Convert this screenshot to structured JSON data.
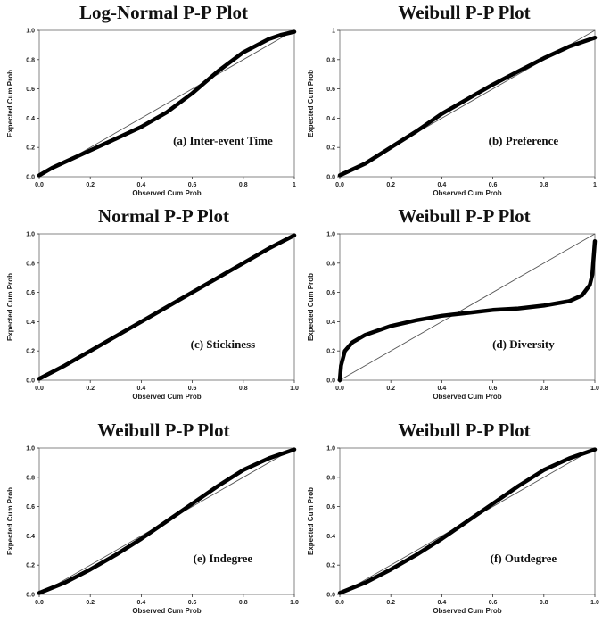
{
  "chart_data": [
    {
      "type": "line",
      "title": "Log-Normal P-P Plot",
      "caption": "(a) Inter-event Time",
      "xlabel": "Observed Cum Prob",
      "ylabel": "Expected Cum Prob",
      "xlim": [
        0,
        1
      ],
      "ylim": [
        0,
        1
      ],
      "x_ticks": [
        "0.0",
        "0.2",
        "0.4",
        "0.6",
        "0.8",
        "1"
      ],
      "y_ticks": [
        "0.0",
        "0.2",
        "0.4",
        "0.6",
        "0.8",
        "1.0"
      ],
      "reference_line": [
        [
          0,
          0
        ],
        [
          1,
          1
        ]
      ],
      "series": [
        {
          "x": [
            0,
            0.05,
            0.1,
            0.2,
            0.3,
            0.4,
            0.5,
            0.6,
            0.7,
            0.8,
            0.9,
            0.95,
            1.0
          ],
          "y": [
            0.01,
            0.06,
            0.1,
            0.18,
            0.26,
            0.34,
            0.44,
            0.57,
            0.72,
            0.85,
            0.94,
            0.97,
            0.99
          ]
        }
      ]
    },
    {
      "type": "line",
      "title": "Weibull P-P Plot",
      "caption": "(b) Preference",
      "xlabel": "Observed Cum Prob",
      "ylabel": "Expected Cum Prob",
      "xlim": [
        0,
        1
      ],
      "ylim": [
        0,
        1
      ],
      "x_ticks": [
        "0.0",
        "0.2",
        "0.4",
        "0.6",
        "0.8",
        "1"
      ],
      "y_ticks": [
        "0.0",
        "0.2",
        "0.4",
        "0.6",
        "0.8",
        "1"
      ],
      "reference_line": [
        [
          0,
          0
        ],
        [
          1,
          1
        ]
      ],
      "series": [
        {
          "x": [
            0,
            0.1,
            0.2,
            0.3,
            0.4,
            0.5,
            0.6,
            0.7,
            0.8,
            0.9,
            1.0
          ],
          "y": [
            0.01,
            0.09,
            0.2,
            0.31,
            0.43,
            0.53,
            0.63,
            0.72,
            0.81,
            0.89,
            0.95
          ]
        }
      ]
    },
    {
      "type": "line",
      "title": "Normal P-P Plot",
      "caption": "(c) Stickiness",
      "xlabel": "Observed Cum Prob",
      "ylabel": "Expected Cum Prob",
      "xlim": [
        0,
        1
      ],
      "ylim": [
        0,
        1
      ],
      "x_ticks": [
        "0.0",
        "0.2",
        "0.4",
        "0.6",
        "0.8",
        "1.0"
      ],
      "y_ticks": [
        "0.0",
        "0.2",
        "0.4",
        "0.6",
        "0.8",
        "1.0"
      ],
      "reference_line": [
        [
          0,
          0
        ],
        [
          1,
          1
        ]
      ],
      "series": [
        {
          "x": [
            0,
            0.1,
            0.2,
            0.3,
            0.4,
            0.5,
            0.6,
            0.7,
            0.8,
            0.9,
            1.0
          ],
          "y": [
            0.01,
            0.1,
            0.2,
            0.3,
            0.4,
            0.5,
            0.6,
            0.7,
            0.8,
            0.9,
            0.99
          ]
        }
      ]
    },
    {
      "type": "line",
      "title": "Weibull P-P Plot",
      "caption": "(d) Diversity",
      "xlabel": "Observed Cum Prob",
      "ylabel": "Expected Cum Prob",
      "xlim": [
        0,
        1
      ],
      "ylim": [
        0,
        1
      ],
      "x_ticks": [
        "0.0",
        "0.2",
        "0.4",
        "0.6",
        "0.8",
        "1.0"
      ],
      "y_ticks": [
        "0.0",
        "0.2",
        "0.4",
        "0.6",
        "0.8",
        "1.0"
      ],
      "reference_line": [
        [
          0,
          0
        ],
        [
          1,
          1
        ]
      ],
      "series": [
        {
          "x": [
            0,
            0.005,
            0.02,
            0.05,
            0.1,
            0.2,
            0.3,
            0.4,
            0.5,
            0.6,
            0.7,
            0.8,
            0.9,
            0.95,
            0.98,
            0.99,
            1.0
          ],
          "y": [
            0.0,
            0.1,
            0.2,
            0.26,
            0.31,
            0.37,
            0.41,
            0.44,
            0.46,
            0.48,
            0.49,
            0.51,
            0.54,
            0.58,
            0.65,
            0.72,
            0.95
          ]
        }
      ]
    },
    {
      "type": "line",
      "title": "Weibull P-P Plot",
      "caption": "(e) Indegree",
      "xlabel": "Observed Cum Prob",
      "ylabel": "Expected Cum Prob",
      "xlim": [
        0,
        1
      ],
      "ylim": [
        0,
        1
      ],
      "x_ticks": [
        "0.0",
        "0.2",
        "0.4",
        "0.6",
        "0.8",
        "1.0"
      ],
      "y_ticks": [
        "0.0",
        "0.2",
        "0.4",
        "0.6",
        "0.8",
        "1.0"
      ],
      "reference_line": [
        [
          0,
          0
        ],
        [
          1,
          1
        ]
      ],
      "series": [
        {
          "x": [
            0,
            0.1,
            0.2,
            0.3,
            0.4,
            0.5,
            0.6,
            0.7,
            0.8,
            0.9,
            1.0
          ],
          "y": [
            0.01,
            0.08,
            0.17,
            0.27,
            0.38,
            0.5,
            0.62,
            0.74,
            0.85,
            0.93,
            0.99
          ]
        }
      ]
    },
    {
      "type": "line",
      "title": "Weibull P-P Plot",
      "caption": "(f) Outdegree",
      "xlabel": "Observed Cum Prob",
      "ylabel": "Expected Cum Prob",
      "xlim": [
        0,
        1
      ],
      "ylim": [
        0,
        1
      ],
      "x_ticks": [
        "0.0",
        "0.2",
        "0.4",
        "0.6",
        "0.8",
        "1.0"
      ],
      "y_ticks": [
        "0.0",
        "0.2",
        "0.4",
        "0.6",
        "0.8",
        "1.0"
      ],
      "reference_line": [
        [
          0,
          0
        ],
        [
          1,
          1
        ]
      ],
      "series": [
        {
          "x": [
            0,
            0.1,
            0.2,
            0.3,
            0.4,
            0.5,
            0.6,
            0.7,
            0.8,
            0.9,
            1.0
          ],
          "y": [
            0.01,
            0.08,
            0.17,
            0.27,
            0.38,
            0.5,
            0.62,
            0.74,
            0.85,
            0.93,
            0.99
          ]
        }
      ]
    }
  ]
}
